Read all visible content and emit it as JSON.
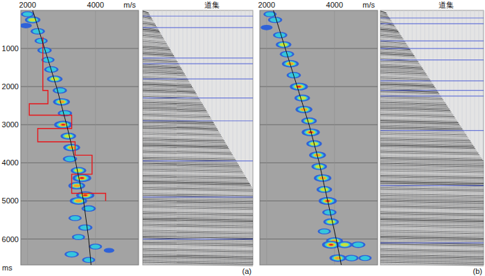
{
  "chart_data": [
    {
      "type": "scatter",
      "panel_label": "(a)",
      "x_label": "m/s",
      "y_label": "ms",
      "gather_title": "道集",
      "xlim": [
        1800,
        5270
      ],
      "ylim": [
        0,
        6680
      ],
      "xticks": [
        2000,
        4000
      ],
      "yticks": [
        1000,
        2000,
        3000,
        4000,
        5000,
        6000
      ],
      "grid": true,
      "series": [
        {
          "type": "scatter",
          "x": [
            2000,
            2150,
            1950,
            2300,
            2400,
            2500,
            2600,
            2700,
            2800,
            2950,
            3000,
            3100,
            3050,
            3200,
            3300,
            3250,
            3500,
            3600,
            3450,
            3700,
            3500,
            3800,
            3400,
            3700,
            3500,
            4000,
            3300,
            3800,
            4400
          ],
          "values": [
            100,
            250,
            400,
            550,
            800,
            1050,
            1300,
            1550,
            1800,
            2100,
            2400,
            2700,
            3000,
            3300,
            3600,
            3900,
            4200,
            4400,
            4600,
            4850,
            5000,
            5200,
            5450,
            5700,
            5950,
            6200,
            6400,
            6550,
            6300
          ],
          "semblance": [
            0.5,
            0.7,
            0.4,
            0.6,
            0.5,
            0.6,
            0.5,
            0.6,
            0.7,
            0.6,
            0.8,
            0.6,
            0.9,
            0.7,
            0.8,
            0.6,
            0.7,
            0.95,
            0.8,
            0.9,
            0.85,
            0.6,
            0.5,
            0.6,
            0.5,
            0.5,
            0.6,
            0.5,
            0.3
          ]
        },
        {
          "type": "line",
          "color": "#e8161b",
          "x": [
            2450,
            2450,
            2600,
            2600,
            2050,
            2050,
            3300,
            3300,
            2300,
            2300,
            3400,
            3400,
            3900,
            3900,
            3300,
            3300,
            4300,
            4300
          ],
          "values": [
            700,
            2100,
            2100,
            2450,
            2450,
            2750,
            2750,
            3100,
            3100,
            3450,
            3450,
            3800,
            3800,
            4300,
            4300,
            4800,
            4800,
            5000
          ]
        },
        {
          "type": "line",
          "color": "#111111",
          "x": [
            2150,
            2500,
            2850,
            3150,
            3420,
            3650,
            3800,
            3870
          ],
          "values": [
            0,
            1000,
            2000,
            3000,
            4000,
            5000,
            6000,
            6680
          ]
        }
      ],
      "gather_lines": [
        150,
        450,
        1250,
        1400,
        1800,
        2300,
        2900,
        3950,
        4900,
        6000
      ]
    },
    {
      "type": "scatter",
      "panel_label": "(b)",
      "x_label": "m/s",
      "gather_title": "道集",
      "tick_labels": "x",
      "xlim": [
        1800,
        5270
      ],
      "ylim": [
        0,
        6680
      ],
      "xticks": [
        2000,
        4000
      ],
      "yticks": [
        1000,
        2000,
        3000,
        4000,
        5000,
        6000
      ],
      "grid": true,
      "series": [
        {
          "type": "scatter",
          "x": [
            2100,
            2250,
            2000,
            2400,
            2500,
            2600,
            2700,
            2800,
            2950,
            3050,
            3100,
            3250,
            3300,
            3400,
            3500,
            3550,
            3650,
            3700,
            3800,
            3850,
            3900,
            3700,
            4000,
            3900,
            4300,
            4700,
            4100,
            4500,
            4900
          ],
          "values": [
            100,
            250,
            450,
            650,
            900,
            1150,
            1400,
            1700,
            2000,
            2300,
            2600,
            2900,
            3200,
            3500,
            3800,
            4100,
            4400,
            4700,
            5000,
            5300,
            5550,
            5800,
            6050,
            6150,
            6150,
            6150,
            6500,
            6500,
            6500
          ],
          "semblance": [
            0.5,
            0.6,
            0.4,
            0.6,
            0.7,
            0.6,
            0.8,
            0.6,
            0.9,
            0.7,
            0.8,
            0.7,
            0.9,
            0.7,
            0.8,
            0.7,
            0.85,
            0.7,
            0.9,
            0.6,
            0.7,
            0.5,
            0.8,
            0.9,
            0.7,
            0.6,
            0.8,
            0.6,
            0.5
          ]
        },
        {
          "type": "line",
          "color": "#111111",
          "x": [
            2200,
            2550,
            2900,
            3250,
            3550,
            3800,
            4050,
            4200
          ],
          "values": [
            0,
            1000,
            2000,
            3000,
            4000,
            5000,
            6000,
            6680
          ]
        }
      ],
      "gather_lines": [
        200,
        350,
        800,
        1000,
        1300,
        1850,
        2100,
        2250,
        3150,
        4600,
        6100
      ]
    }
  ]
}
